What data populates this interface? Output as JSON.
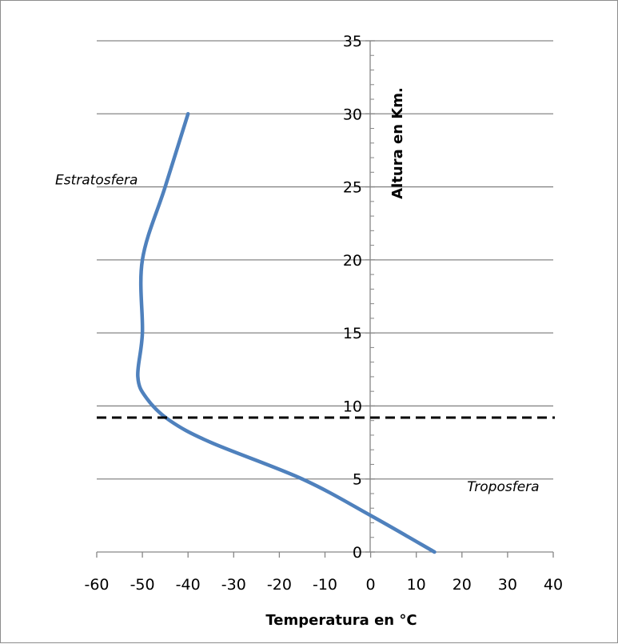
{
  "chart_data": {
    "type": "line",
    "xlabel": "Temperatura en °C",
    "ylabel": "Altura en Km.",
    "xlim": [
      -60,
      40
    ],
    "ylim": [
      0,
      35
    ],
    "x_ticks": [
      -60,
      -50,
      -40,
      -30,
      -20,
      -10,
      0,
      10,
      20,
      30,
      40
    ],
    "y_ticks": [
      0,
      5,
      10,
      15,
      20,
      25,
      30,
      35
    ],
    "grid": "horizontal",
    "series": [
      {
        "color": "#4f81bd",
        "points": [
          {
            "x": 14,
            "y": 0
          },
          {
            "x": 0,
            "y": 2.5
          },
          {
            "x": -15,
            "y": 5
          },
          {
            "x": -35,
            "y": 7.5
          },
          {
            "x": -44,
            "y": 9
          },
          {
            "x": -49,
            "y": 10.5
          },
          {
            "x": -51,
            "y": 12
          },
          {
            "x": -50,
            "y": 15
          },
          {
            "x": -50,
            "y": 20
          },
          {
            "x": -45,
            "y": 25
          },
          {
            "x": -40,
            "y": 30
          }
        ]
      }
    ],
    "reference_line": {
      "y": 9.2,
      "style": "dashed",
      "color": "#000000"
    },
    "annotations": [
      {
        "text": "Estratosfera",
        "x": -60,
        "y": 25.5
      },
      {
        "text": "Troposfera",
        "x": 22,
        "y": 4.5
      }
    ]
  }
}
